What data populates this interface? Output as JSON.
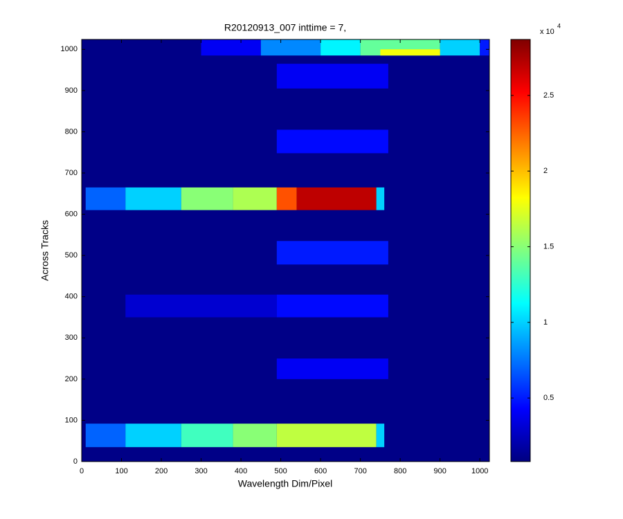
{
  "chart_data": {
    "type": "heatmap",
    "title": "R20120913_007 inttime = 7,",
    "x_label": "Wavelength Dim/Pixel",
    "y_label": "Across Tracks",
    "xlim": [
      0,
      1024
    ],
    "ylim": [
      0,
      1024
    ],
    "xticks": [
      0,
      100,
      200,
      300,
      400,
      500,
      600,
      700,
      800,
      900,
      1000
    ],
    "yticks": [
      0,
      100,
      200,
      300,
      400,
      500,
      600,
      700,
      800,
      900,
      1000
    ],
    "colormap": "jet",
    "background_value": 0.1,
    "clim": [
      0.08,
      2.87
    ],
    "cticks": [
      0.5,
      1,
      1.5,
      2,
      2.5
    ],
    "colorbar_scale": {
      "base": "x 10",
      "exponent": "4"
    },
    "regions": [
      {
        "x": [
          10,
          110
        ],
        "y": [
          35,
          92
        ],
        "value": 0.7
      },
      {
        "x": [
          110,
          250
        ],
        "y": [
          35,
          92
        ],
        "value": 1.0
      },
      {
        "x": [
          250,
          380
        ],
        "y": [
          35,
          92
        ],
        "value": 1.3
      },
      {
        "x": [
          380,
          490
        ],
        "y": [
          35,
          92
        ],
        "value": 1.5
      },
      {
        "x": [
          490,
          740
        ],
        "y": [
          35,
          92
        ],
        "value": 1.65
      },
      {
        "x": [
          740,
          760
        ],
        "y": [
          35,
          92
        ],
        "value": 1.0
      },
      {
        "x": [
          490,
          770
        ],
        "y": [
          200,
          250
        ],
        "value": 0.4
      },
      {
        "x": [
          110,
          490
        ],
        "y": [
          350,
          405
        ],
        "value": 0.3
      },
      {
        "x": [
          490,
          770
        ],
        "y": [
          350,
          405
        ],
        "value": 0.45
      },
      {
        "x": [
          490,
          770
        ],
        "y": [
          478,
          535
        ],
        "value": 0.5
      },
      {
        "x": [
          10,
          110
        ],
        "y": [
          610,
          665
        ],
        "value": 0.7
      },
      {
        "x": [
          110,
          250
        ],
        "y": [
          610,
          665
        ],
        "value": 1.0
      },
      {
        "x": [
          250,
          380
        ],
        "y": [
          610,
          665
        ],
        "value": 1.5
      },
      {
        "x": [
          380,
          490
        ],
        "y": [
          610,
          665
        ],
        "value": 1.6
      },
      {
        "x": [
          490,
          540
        ],
        "y": [
          610,
          665
        ],
        "value": 2.3
      },
      {
        "x": [
          540,
          740
        ],
        "y": [
          610,
          665
        ],
        "value": 2.7
      },
      {
        "x": [
          740,
          760
        ],
        "y": [
          610,
          665
        ],
        "value": 1.0
      },
      {
        "x": [
          490,
          770
        ],
        "y": [
          748,
          805
        ],
        "value": 0.45
      },
      {
        "x": [
          490,
          770
        ],
        "y": [
          905,
          965
        ],
        "value": 0.4
      },
      {
        "x": [
          300,
          450
        ],
        "y": [
          985,
          1024
        ],
        "value": 0.4
      },
      {
        "x": [
          450,
          600
        ],
        "y": [
          985,
          1024
        ],
        "value": 0.8
      },
      {
        "x": [
          600,
          700
        ],
        "y": [
          985,
          1024
        ],
        "value": 1.1
      },
      {
        "x": [
          700,
          900
        ],
        "y": [
          985,
          1024
        ],
        "value": 1.4
      },
      {
        "x": [
          900,
          1000
        ],
        "y": [
          985,
          1024
        ],
        "value": 1.0
      },
      {
        "x": [
          1000,
          1024
        ],
        "y": [
          985,
          1024
        ],
        "value": 0.5
      },
      {
        "x": [
          750,
          900
        ],
        "y": [
          985,
          1000
        ],
        "value": 1.8
      }
    ]
  }
}
